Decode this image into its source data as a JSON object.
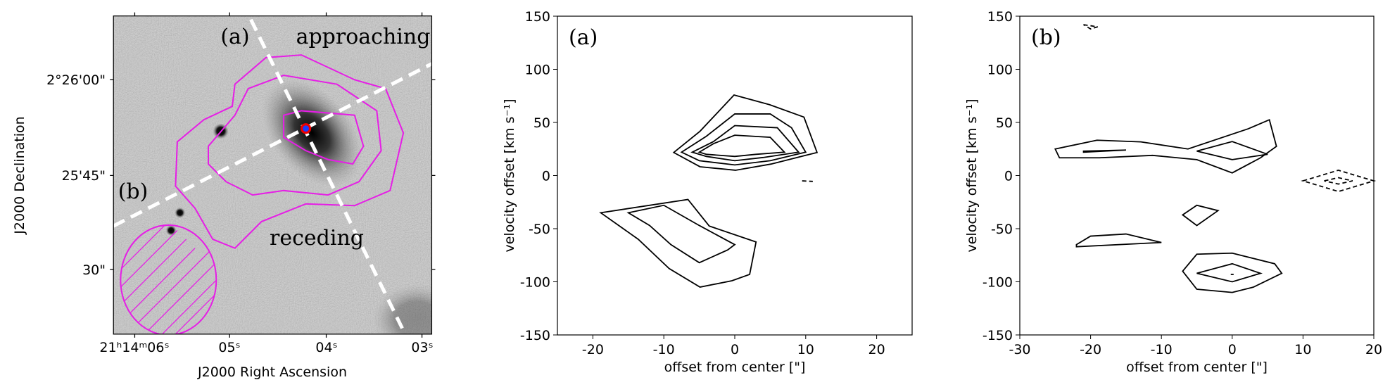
{
  "chart_data": [
    {
      "type": "image",
      "xlabel": "J2000 Right Ascension",
      "ylabel": "J2000 Declination",
      "xtick_labels": [
        "21ʰ14ᵐ06ˢ",
        "05ˢ",
        "04ˢ",
        "03ˢ"
      ],
      "ytick_labels": [
        "2°26'00\"",
        "25'45\"",
        "30\""
      ],
      "annotations": [
        "(a)",
        "approaching",
        "(b)",
        "receding"
      ],
      "contour_color": "#e61ee6"
    },
    {
      "type": "contour",
      "xlabel": "offset from center [\"]",
      "ylabel": "velocity offset [km s⁻¹]",
      "annotation": "(a)",
      "xlim": [
        -25,
        25
      ],
      "ylim": [
        -150,
        150
      ],
      "xticks": [
        -20,
        -10,
        0,
        10,
        20
      ],
      "yticks": [
        -150,
        -100,
        -50,
        0,
        50,
        100,
        150
      ],
      "color": "#000000",
      "series": [
        {
          "x": [
            -8.6,
            -4.9,
            -0.1,
            4.9,
            9.75,
            11.6,
            5.1,
            0.1,
            -4.9
          ],
          "y": [
            21.7,
            41.7,
            75.8,
            66.7,
            55,
            21.7,
            10.8,
            5,
            8.3
          ],
          "dashed": false
        },
        {
          "x": [
            -7.5,
            -4,
            0,
            5,
            8,
            10,
            5,
            0,
            -5
          ],
          "y": [
            22,
            37,
            58,
            58,
            45,
            22,
            14,
            10,
            14
          ],
          "dashed": false
        },
        {
          "x": [
            -6,
            -3,
            0,
            6,
            9,
            4,
            0,
            -4
          ],
          "y": [
            22,
            32,
            47,
            45,
            22,
            17,
            14,
            18
          ],
          "dashed": false
        },
        {
          "x": [
            -5,
            -3,
            0,
            5,
            7,
            3,
            0,
            -4
          ],
          "y": [
            22,
            30,
            38,
            36,
            22,
            20,
            18,
            20
          ],
          "dashed": false
        },
        {
          "x": [
            9.5,
            11
          ],
          "y": [
            -5,
            -5.5
          ],
          "dashed": true
        },
        {
          "x": [
            -18.9,
            -6.6,
            -3.6,
            3,
            2.1,
            -0.4,
            -4.9,
            -9.25,
            -13.6
          ],
          "y": [
            -35,
            -22.5,
            -47.5,
            -62.5,
            -93,
            -99,
            -105,
            -87.5,
            -60
          ],
          "dashed": false
        },
        {
          "x": [
            -15,
            -10,
            -5,
            0,
            -1,
            -5,
            -9,
            -12
          ],
          "y": [
            -35,
            -28,
            -47,
            -65,
            -70,
            -82,
            -65,
            -47
          ],
          "dashed": false
        }
      ]
    },
    {
      "type": "contour",
      "xlabel": "offset from center [\"]",
      "ylabel": "velocity offset [km s⁻¹]",
      "annotation": "(b)",
      "xlim": [
        -30,
        20
      ],
      "ylim": [
        -150,
        150
      ],
      "xticks": [
        -30,
        -20,
        -10,
        0,
        10,
        20
      ],
      "yticks": [
        -150,
        -100,
        -50,
        0,
        50,
        100,
        150
      ],
      "color": "#000000",
      "series": [
        {
          "x": [
            -25,
            -19.1,
            -12.9,
            -6.25,
            2.25,
            5.25,
            6.25,
            4,
            0,
            -5,
            -11.25,
            -18.75,
            -24.4
          ],
          "y": [
            25,
            33.3,
            31.7,
            25,
            44,
            52.5,
            27.5,
            16.7,
            2.5,
            15,
            19,
            16.7,
            16.7
          ],
          "dashed": false
        },
        {
          "x": [
            -21,
            -15,
            -21
          ],
          "y": [
            23,
            24,
            22
          ],
          "dashed": false
        },
        {
          "x": [
            -5,
            0,
            5,
            0
          ],
          "y": [
            23,
            32,
            20,
            15
          ],
          "dashed": false
        },
        {
          "x": [
            -7,
            -5,
            -2,
            -5
          ],
          "y": [
            -37,
            -28,
            -33,
            -47
          ],
          "dashed": false
        },
        {
          "x": [
            -22,
            -20,
            -15,
            -10,
            -22
          ],
          "y": [
            -65,
            -57,
            -55,
            -63,
            -67
          ],
          "dashed": false
        },
        {
          "x": [
            -7,
            -5,
            0,
            6,
            7,
            3,
            0,
            -5
          ],
          "y": [
            -90,
            -74,
            -73,
            -83,
            -92,
            -105,
            -110,
            -107
          ],
          "dashed": false
        },
        {
          "x": [
            -5,
            0,
            4,
            0
          ],
          "y": [
            -92,
            -83,
            -92,
            -100
          ],
          "dashed": false
        },
        {
          "x": [
            -0.2,
            0.2
          ],
          "y": [
            -93,
            -93
          ],
          "dashed": false
        },
        {
          "x": [
            -21,
            -19,
            -20
          ],
          "y": [
            142,
            140,
            138
          ],
          "dashed": true
        },
        {
          "x": [
            10,
            15,
            20,
            15
          ],
          "y": [
            -5,
            5,
            -5,
            -15
          ],
          "dashed": true
        },
        {
          "x": [
            13,
            15,
            17,
            15
          ],
          "y": [
            -5,
            -2,
            -5,
            -8
          ],
          "dashed": true
        }
      ]
    }
  ]
}
